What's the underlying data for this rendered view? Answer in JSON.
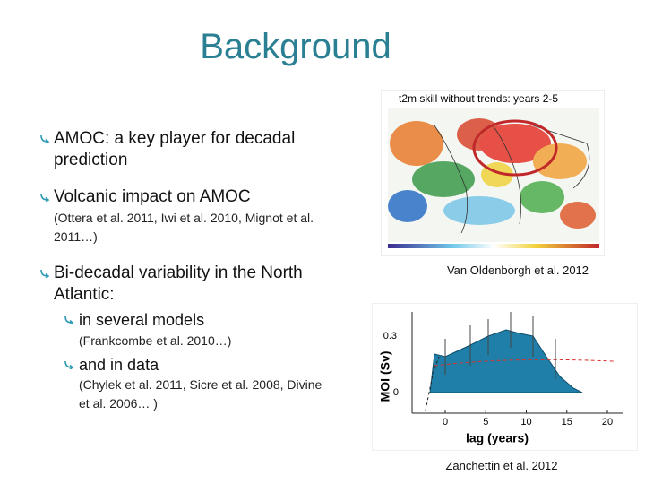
{
  "title": "Background",
  "bullets": [
    {
      "text": "AMOC: a key player for decadal prediction"
    },
    {
      "text": "Volcanic impact on AMOC",
      "note": "(Ottera et al. 2011, Iwi et al. 2010, Mignot et al. 2011…)"
    },
    {
      "text": "Bi-decadal variability in the North Atlantic:",
      "subbullets": [
        {
          "text": "in several models",
          "note": "(Frankcombe et al. 2010…)"
        },
        {
          "text": "and in data",
          "note": "(Chylek et al. 2011, Sicre et al. 2008, Divine et al. 2006… )"
        }
      ]
    }
  ],
  "figures": [
    {
      "title": "t2m skill without trends: years 2-5",
      "caption": "Van Oldenborgh et al. 2012"
    },
    {
      "caption": "Zanchettin et al. 2012",
      "y_label": "MOI (Sv)",
      "x_label": "lag (years)",
      "yticks": [
        0.3,
        0
      ],
      "xticks": [
        0,
        5,
        10,
        15,
        20
      ]
    }
  ]
}
